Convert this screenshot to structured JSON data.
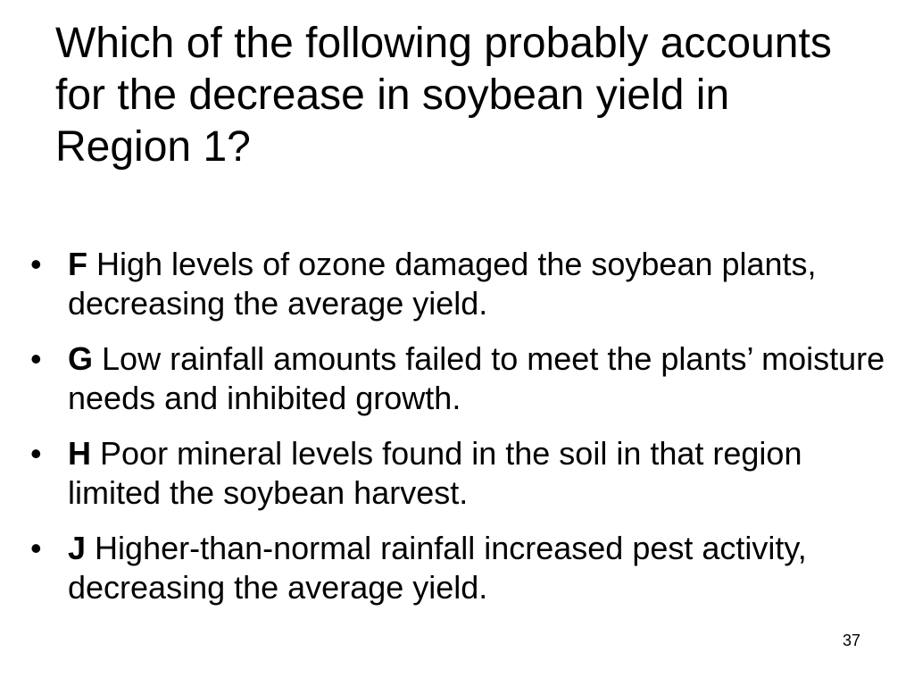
{
  "slide": {
    "title": "Which of the following probably accounts for the decrease in soybean yield in Region 1?",
    "bullet_glyph": "•",
    "options": [
      {
        "letter": "F",
        "text": "High levels of ozone damaged the soybean plants, decreasing the average yield."
      },
      {
        "letter": "G",
        "text": "Low rainfall amounts failed to meet the plants’ moisture needs and inhibited growth."
      },
      {
        "letter": "H",
        "text": "Poor mineral levels found in the soil in that region limited the soybean harvest."
      },
      {
        "letter": "J",
        "text": "Higher-than-normal rainfall increased pest activity, decreasing the average yield."
      }
    ],
    "page_number": "37"
  }
}
